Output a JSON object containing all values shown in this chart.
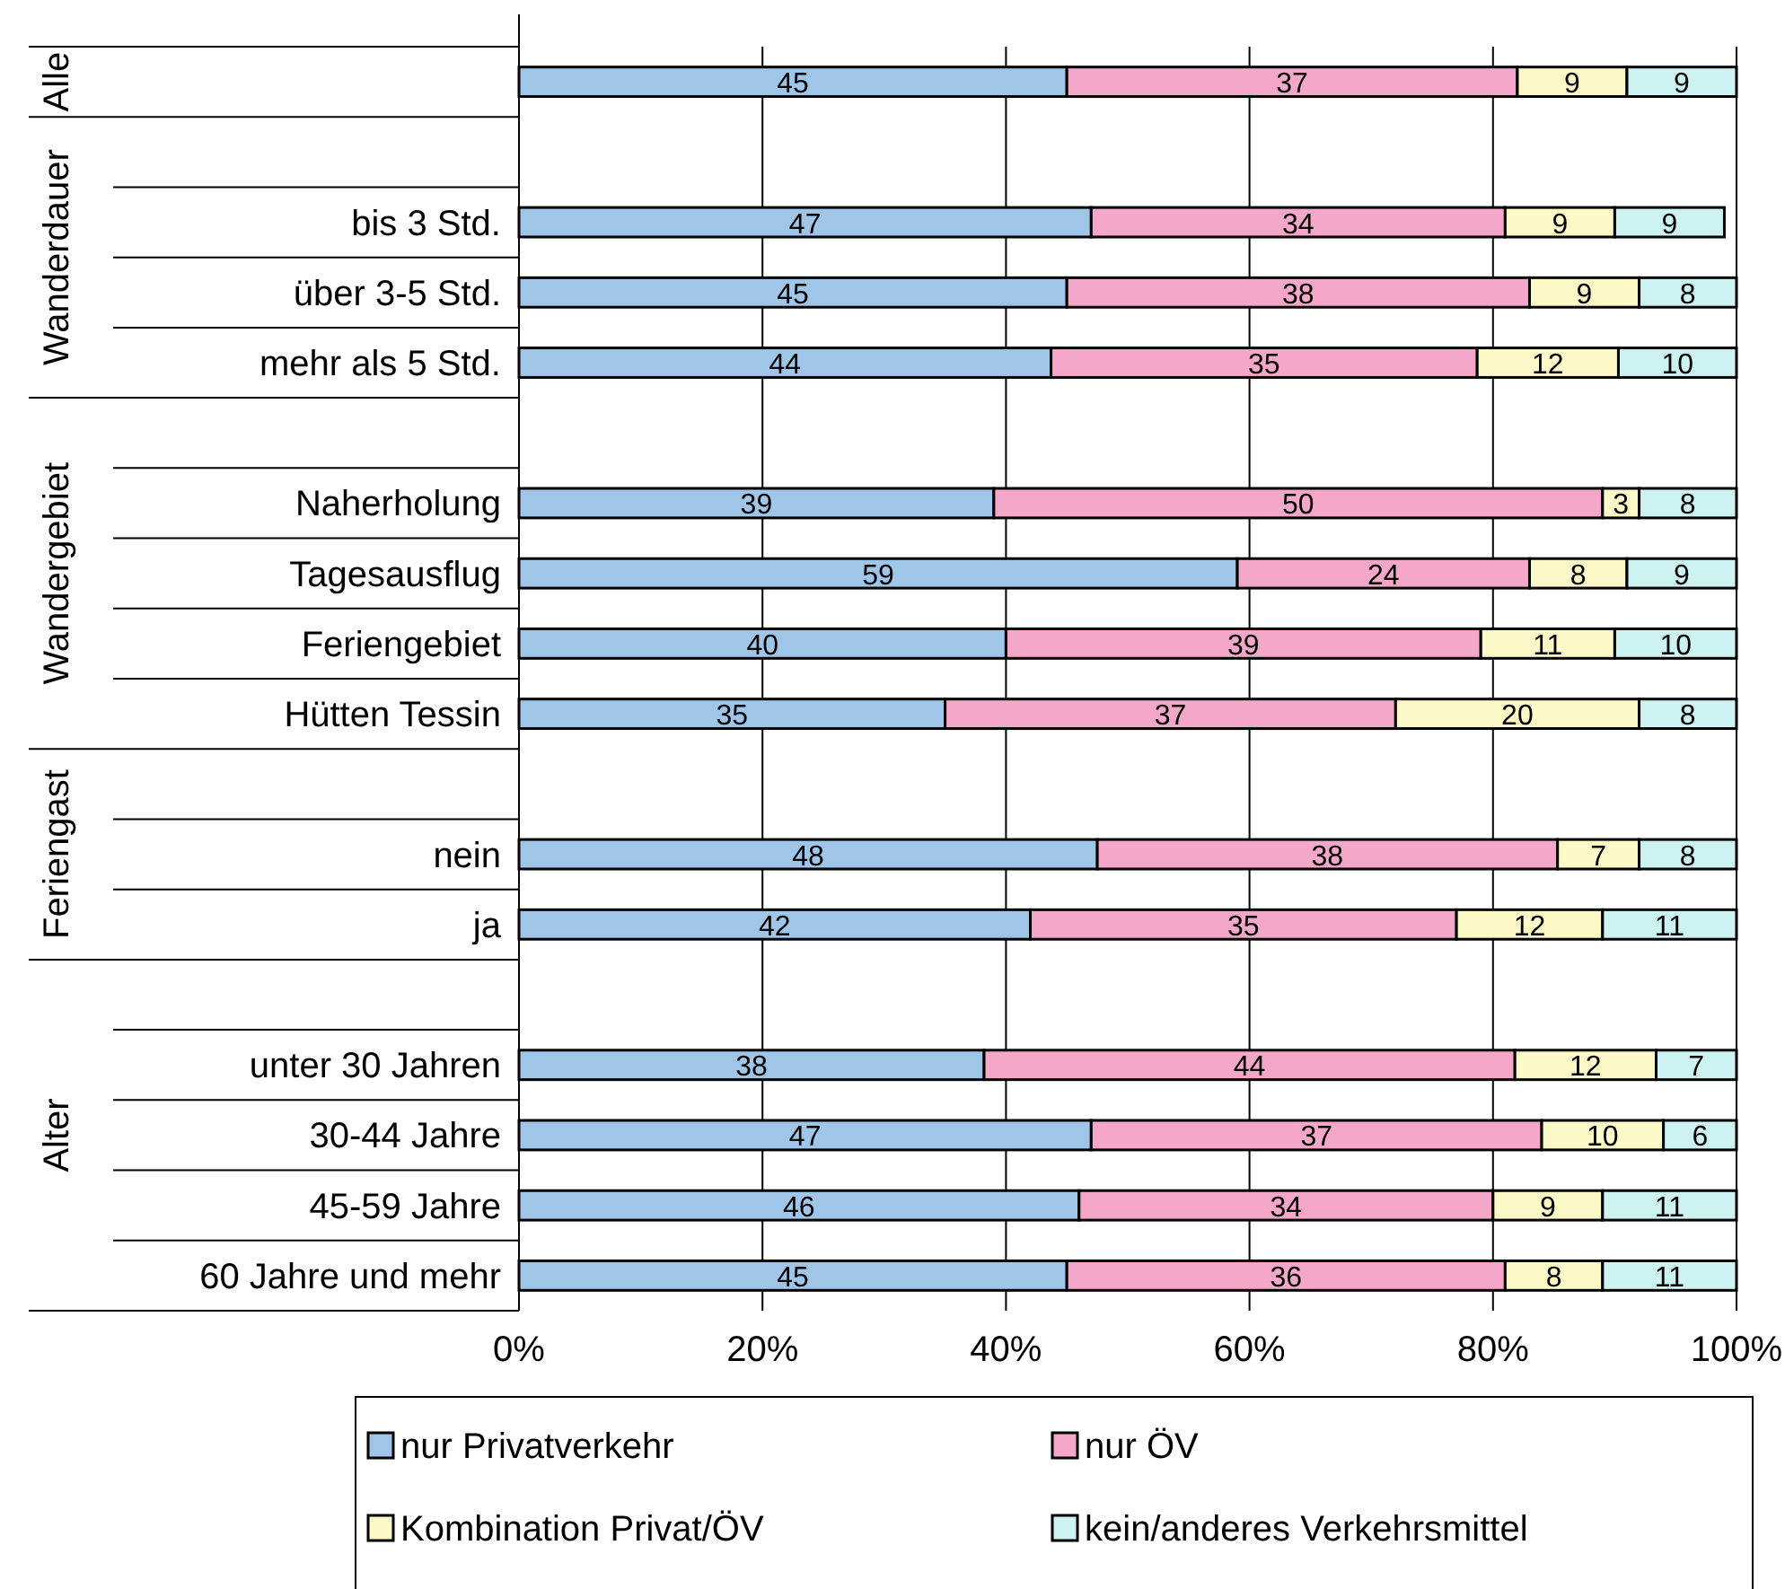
{
  "chart_data": {
    "type": "bar",
    "orientation": "horizontal",
    "stacked": true,
    "categories": [
      null,
      null,
      "bis 3 Std.",
      "über 3-5 Std.",
      "mehr als 5 Std.",
      null,
      "Naherholung",
      "Tagesausflug",
      "Feriengebiet",
      "Hütten Tessin",
      null,
      "nein",
      "ja",
      null,
      "unter 30 Jahren",
      "30-44 Jahre",
      "45-59 Jahre",
      "60 Jahre und mehr"
    ],
    "series": [
      {
        "name": "nur Privatverkehr",
        "color": "#9fc5e8",
        "values": [
          45,
          null,
          47,
          45,
          43.7,
          null,
          39,
          59,
          40,
          35,
          null,
          47.5,
          42,
          null,
          38.2,
          47,
          46,
          45
        ],
        "value_labels": [
          "45",
          null,
          "47",
          "45",
          "44",
          null,
          "39",
          "59",
          "40",
          "35",
          null,
          "48",
          "42",
          null,
          "38",
          "47",
          "46",
          "45"
        ]
      },
      {
        "name": "nur ÖV",
        "color": "#f4a7c9",
        "values": [
          37,
          null,
          34,
          38,
          35,
          null,
          50,
          24,
          39,
          37,
          null,
          37.8,
          35,
          null,
          43.6,
          37,
          34,
          36
        ],
        "value_labels": [
          "37",
          null,
          "34",
          "38",
          "35",
          null,
          "50",
          "24",
          "39",
          "37",
          null,
          "38",
          "35",
          null,
          "44",
          "37",
          "34",
          "36"
        ]
      },
      {
        "name": "Kombination Privat/ÖV",
        "color": "#fcf8c8",
        "values": [
          9,
          null,
          9,
          9,
          11.6,
          null,
          3,
          8,
          11,
          20,
          null,
          6.7,
          12,
          null,
          11.6,
          10,
          9,
          8
        ],
        "value_labels": [
          "9",
          null,
          "9",
          "9",
          "12",
          null,
          "3",
          "8",
          "11",
          "20",
          null,
          "7",
          "12",
          null,
          "12",
          "10",
          "9",
          "8"
        ]
      },
      {
        "name": "kein/anderes Verkehrsmittel",
        "color": "#cdf2f2",
        "values": [
          9,
          null,
          9,
          8,
          9.7,
          null,
          8,
          9,
          10,
          8,
          null,
          8,
          11,
          null,
          6.6,
          6,
          11,
          11
        ],
        "value_labels": [
          "9",
          null,
          "9",
          "8",
          "10",
          null,
          "8",
          "9",
          "10",
          "8",
          null,
          "8",
          "11",
          null,
          "7",
          "6",
          "11",
          "11"
        ]
      }
    ],
    "xlim": [
      0,
      100
    ],
    "xticks": [
      {
        "value": 0,
        "label": "0%"
      },
      {
        "value": 20,
        "label": "20%"
      },
      {
        "value": 40,
        "label": "40%"
      },
      {
        "value": 60,
        "label": "60%"
      },
      {
        "value": 80,
        "label": "80%"
      },
      {
        "value": 100,
        "label": "100%"
      }
    ],
    "grid": "x",
    "legend": "bottom",
    "annotations": [
      "Alle",
      "Wanderdauer",
      "Wandergebiet",
      "Feriengast",
      "Alter"
    ]
  }
}
